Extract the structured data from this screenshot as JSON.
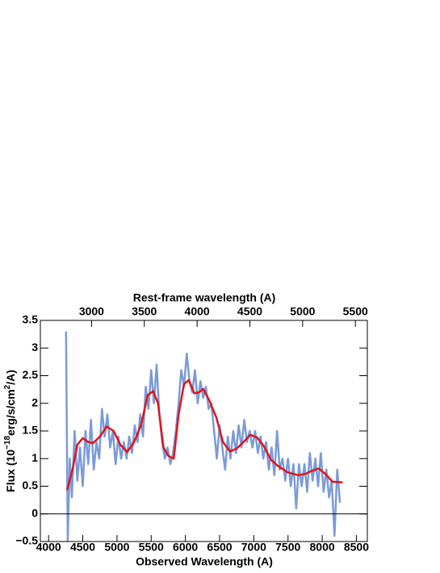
{
  "chart_data": {
    "type": "line",
    "xlabel": "Observed Wavelength (A)",
    "x2label": "Rest-frame wavelength (A)",
    "ylabel": {
      "pre": "Flux (10",
      "sup1": "−18",
      "mid": "erg/s/cm",
      "sup2": "2",
      "post": "/A)"
    },
    "xlim": [
      3880,
      8660
    ],
    "xticks": [
      4000,
      4500,
      5000,
      5500,
      6000,
      6500,
      7000,
      7500,
      8000,
      8500
    ],
    "x2lim": [
      2515,
      5613
    ],
    "x2ticks": [
      3000,
      3500,
      4000,
      4500,
      5000,
      5500
    ],
    "ylim": [
      -0.5,
      3.5
    ],
    "yticks": [
      {
        "value": -0.5,
        "label": "−0.5"
      },
      0,
      0.5,
      1,
      1.5,
      2,
      2.5,
      3,
      3.5
    ],
    "series": [
      {
        "color": "#7b9bd6",
        "x": [
          4255,
          4280,
          4310,
          4340,
          4380,
          4420,
          4460,
          4500,
          4540,
          4580,
          4620,
          4660,
          4700,
          4740,
          4780,
          4820,
          4860,
          4900,
          4940,
          4980,
          5020,
          5060,
          5100,
          5140,
          5180,
          5220,
          5260,
          5300,
          5340,
          5380,
          5420,
          5460,
          5500,
          5540,
          5580,
          5620,
          5660,
          5700,
          5740,
          5780,
          5820,
          5860,
          5900,
          5940,
          5980,
          6020,
          6060,
          6100,
          6140,
          6180,
          6220,
          6260,
          6300,
          6340,
          6380,
          6420,
          6460,
          6500,
          6540,
          6580,
          6620,
          6660,
          6700,
          6740,
          6780,
          6820,
          6860,
          6900,
          6940,
          6980,
          7020,
          7060,
          7100,
          7140,
          7180,
          7220,
          7260,
          7300,
          7340,
          7380,
          7420,
          7460,
          7500,
          7540,
          7580,
          7620,
          7660,
          7700,
          7740,
          7780,
          7820,
          7860,
          7900,
          7940,
          7980,
          8020,
          8060,
          8100,
          8140,
          8180,
          8220,
          8260
        ],
        "values": [
          3.3,
          -0.5,
          1.0,
          0.3,
          1.5,
          0.6,
          1.2,
          0.5,
          1.5,
          0.9,
          1.7,
          0.8,
          1.3,
          1.0,
          1.9,
          1.4,
          1.8,
          1.2,
          1.5,
          0.9,
          1.4,
          1.0,
          1.3,
          1.0,
          1.4,
          1.1,
          1.6,
          1.3,
          1.8,
          1.4,
          2.3,
          1.9,
          2.6,
          2.0,
          2.7,
          1.8,
          1.3,
          1.0,
          1.2,
          0.9,
          1.1,
          1.5,
          2.0,
          2.6,
          2.3,
          2.9,
          2.4,
          2.2,
          2.6,
          2.0,
          2.4,
          2.1,
          2.3,
          1.9,
          2.0,
          1.5,
          1.0,
          1.6,
          1.2,
          0.8,
          1.4,
          1.0,
          1.5,
          1.1,
          1.6,
          1.2,
          1.7,
          1.3,
          1.5,
          1.2,
          1.5,
          1.1,
          1.4,
          1.0,
          1.3,
          0.8,
          1.2,
          0.7,
          1.5,
          0.8,
          1.0,
          0.6,
          1.0,
          0.5,
          0.9,
          0.1,
          0.9,
          0.5,
          0.9,
          0.4,
          1.1,
          0.6,
          1.0,
          0.5,
          1.1,
          0.4,
          0.8,
          0.3,
          0.6,
          -0.4,
          0.8,
          0.2
        ]
      },
      {
        "color": "#e0141e",
        "x": [
          4270,
          4350,
          4420,
          4500,
          4580,
          4650,
          4750,
          4850,
          4950,
          5050,
          5150,
          5250,
          5350,
          5450,
          5530,
          5600,
          5680,
          5750,
          5830,
          5900,
          5980,
          6050,
          6130,
          6200,
          6260,
          6350,
          6450,
          6550,
          6650,
          6750,
          6850,
          6950,
          7050,
          7150,
          7250,
          7350,
          7500,
          7650,
          7750,
          7850,
          7950,
          8050,
          8150,
          8300
        ],
        "values": [
          0.43,
          0.8,
          1.25,
          1.37,
          1.3,
          1.28,
          1.4,
          1.58,
          1.5,
          1.25,
          1.12,
          1.3,
          1.6,
          2.15,
          2.22,
          2.0,
          1.2,
          1.05,
          1.0,
          1.8,
          2.35,
          2.42,
          2.18,
          2.2,
          2.26,
          2.05,
          1.75,
          1.3,
          1.13,
          1.18,
          1.3,
          1.43,
          1.38,
          1.22,
          0.98,
          0.87,
          0.75,
          0.7,
          0.72,
          0.78,
          0.82,
          0.72,
          0.58,
          0.57
        ]
      }
    ]
  }
}
